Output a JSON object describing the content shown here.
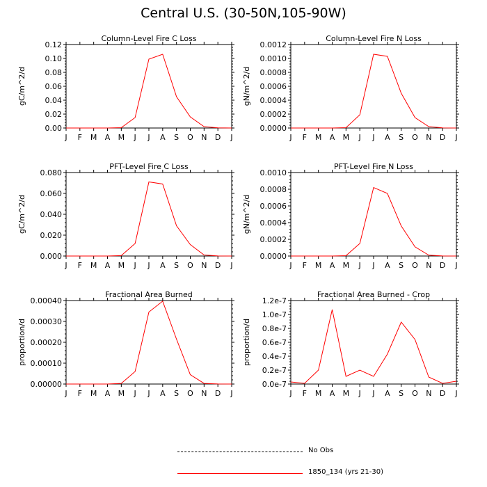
{
  "title": "Central U.S. (30-50N,105-90W)",
  "months": [
    "J",
    "F",
    "M",
    "A",
    "M",
    "J",
    "J",
    "A",
    "S",
    "O",
    "N",
    "D",
    "J"
  ],
  "legend": {
    "items": [
      {
        "label": "No Obs",
        "style": "dashed",
        "color": "#000000"
      },
      {
        "label": "1850_134 (yrs 21-30)",
        "style": "solid",
        "color": "#ff0000"
      }
    ]
  },
  "chart_data": [
    {
      "type": "line",
      "title": "Column-Level Fire C Loss",
      "ylabel": "gC/m^2/d",
      "ylim": [
        0,
        0.12
      ],
      "yticks": [
        "0.00",
        "0.02",
        "0.04",
        "0.06",
        "0.08",
        "0.10",
        "0.12"
      ],
      "yticks_values": [
        0,
        0.02,
        0.04,
        0.06,
        0.08,
        0.1,
        0.12
      ],
      "series": [
        {
          "color": "#ff0000",
          "values": [
            0,
            0,
            0,
            0,
            0.0005,
            0.015,
            0.099,
            0.106,
            0.045,
            0.016,
            0.002,
            0.0002,
            0
          ]
        }
      ]
    },
    {
      "type": "line",
      "title": "Column-Level Fire N Loss",
      "ylabel": "gN/m^2/d",
      "ylim": [
        0,
        0.0012
      ],
      "yticks": [
        "0.0000",
        "0.0002",
        "0.0004",
        "0.0006",
        "0.0008",
        "0.0010",
        "0.0012"
      ],
      "yticks_values": [
        0,
        0.0002,
        0.0004,
        0.0006,
        0.0008,
        0.001,
        0.0012
      ],
      "series": [
        {
          "color": "#ff0000",
          "values": [
            0,
            0,
            0,
            0,
            5e-06,
            0.00019,
            0.00106,
            0.00103,
            0.0005,
            0.00015,
            2e-05,
            2e-06,
            0
          ]
        }
      ]
    },
    {
      "type": "line",
      "title": "PFT-Level Fire C Loss",
      "ylabel": "gC/m^2/d",
      "ylim": [
        0,
        0.08
      ],
      "yticks": [
        "0.000",
        "0.020",
        "0.040",
        "0.060",
        "0.080"
      ],
      "yticks_values": [
        0,
        0.02,
        0.04,
        0.06,
        0.08
      ],
      "series": [
        {
          "color": "#ff0000",
          "values": [
            0,
            0,
            0,
            0,
            0.0004,
            0.012,
            0.071,
            0.069,
            0.029,
            0.011,
            0.001,
            0.0001,
            0
          ]
        }
      ]
    },
    {
      "type": "line",
      "title": "PFT-Level Fire N Loss",
      "ylabel": "gN/m^2/d",
      "ylim": [
        0,
        0.001
      ],
      "yticks": [
        "0.0000",
        "0.0002",
        "0.0004",
        "0.0006",
        "0.0008",
        "0.0010"
      ],
      "yticks_values": [
        0,
        0.0002,
        0.0004,
        0.0006,
        0.0008,
        0.001
      ],
      "series": [
        {
          "color": "#ff0000",
          "values": [
            0,
            0,
            0,
            0,
            4e-06,
            0.00015,
            0.00082,
            0.00075,
            0.00036,
            0.00011,
            1e-05,
            1e-06,
            0
          ]
        }
      ]
    },
    {
      "type": "line",
      "title": "Fractional Area Burned",
      "ylabel": "proportion/d",
      "ylim": [
        0,
        0.0004
      ],
      "yticks": [
        "0.00000",
        "0.00010",
        "0.00020",
        "0.00030",
        "0.00040"
      ],
      "yticks_values": [
        0,
        0.0001,
        0.0002,
        0.0003,
        0.0004
      ],
      "series": [
        {
          "color": "#ff0000",
          "values": [
            0,
            0,
            0,
            0,
            3e-06,
            6e-05,
            0.000345,
            0.000397,
            0.000215,
            4.5e-05,
            3e-06,
            5e-07,
            0
          ]
        }
      ]
    },
    {
      "type": "line",
      "title": "Fractional Area Burned - Crop",
      "ylabel": "proportion/d",
      "ylim": [
        0,
        1.2e-07
      ],
      "yticks": [
        "0.0e-7",
        "0.2e-7",
        "0.4e-7",
        "0.6e-7",
        "0.8e-7",
        "1.0e-7",
        "1.2e-7"
      ],
      "yticks_values": [
        0,
        2e-08,
        4e-08,
        6e-08,
        8e-08,
        1e-07,
        1.2e-07
      ],
      "series": [
        {
          "color": "#ff0000",
          "values": [
            3e-09,
            1e-09,
            2e-08,
            1.07e-07,
            1.1e-08,
            2e-08,
            1.1e-08,
            4.3e-08,
            8.9e-08,
            6.4e-08,
            1e-08,
            1e-09,
            4e-09
          ]
        }
      ]
    }
  ]
}
